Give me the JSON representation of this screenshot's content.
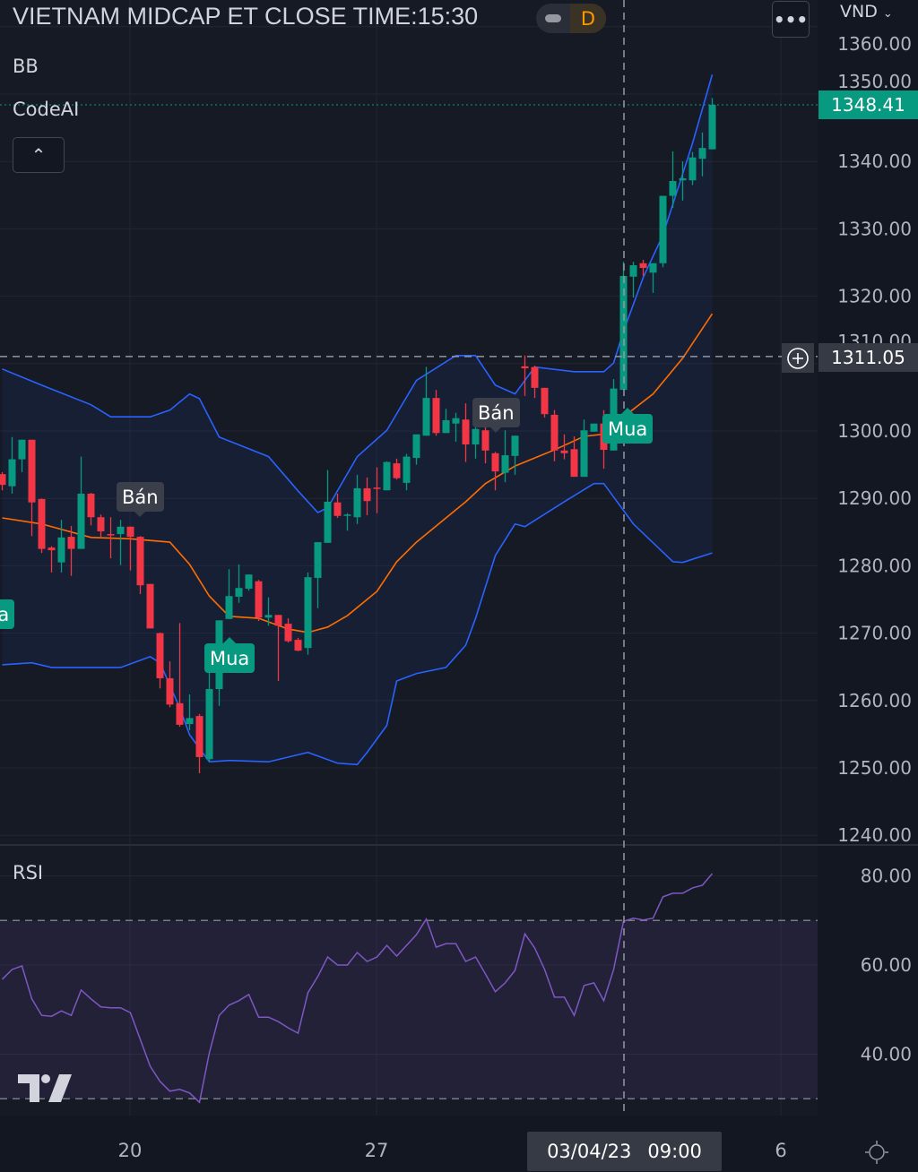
{
  "header": {
    "title": "VIETNAM MIDCAP ET CLOSE TIME:15:30",
    "interval": "D",
    "more_icon": "ellipsis-icon",
    "currency": "VND"
  },
  "legends": {
    "bb": "BB",
    "codeai": "CodeAI",
    "collapse_icon": "chevron-up-icon"
  },
  "price_axis": {
    "labels": [
      "1360.00",
      "1350.00",
      "1340.00",
      "1330.00",
      "1320.00",
      "1310.00",
      "1300.00",
      "1290.00",
      "1280.00",
      "1270.00",
      "1260.00",
      "1250.00",
      "1240.00"
    ],
    "last_price": "1348.41",
    "crosshair_price": "1311.05"
  },
  "rsi": {
    "title": "RSI",
    "labels": [
      "80.00",
      "60.00",
      "40.00"
    ]
  },
  "time_axis": {
    "labels": [
      "20",
      "27",
      "6"
    ],
    "crosshair_date": "03/04/23",
    "crosshair_time": "09:00"
  },
  "signals": [
    {
      "text": "Mua",
      "type": "buy"
    },
    {
      "text": "Bán",
      "type": "sell"
    },
    {
      "text": "Mua",
      "type": "buy"
    },
    {
      "text": "Bán",
      "type": "sell"
    },
    {
      "text": "Mua",
      "type": "buy"
    }
  ],
  "colors": {
    "up": "#089981",
    "down": "#f23645",
    "bb_band": "#2962ff",
    "bb_basis": "#ff6d00",
    "rsi": "#7e57c2",
    "background": "#131722"
  },
  "chart_data": [
    {
      "type": "candlestick",
      "ylim": [
        1240,
        1360
      ],
      "ohlc": [
        [
          1293.6,
          1293.9,
          1291.2,
          1292.0
        ],
        [
          1291.8,
          1299.1,
          1290.7,
          1295.8
        ],
        [
          1295.8,
          1298.7,
          1293.9,
          1298.7
        ],
        [
          1298.7,
          1298.7,
          1284.4,
          1289.4
        ],
        [
          1289.9,
          1290.0,
          1281.9,
          1282.5
        ],
        [
          1282.7,
          1282.9,
          1279.0,
          1282.3
        ],
        [
          1280.5,
          1286.8,
          1279.0,
          1284.2
        ],
        [
          1284.3,
          1285.9,
          1278.5,
          1282.5
        ],
        [
          1282.5,
          1296.2,
          1282.5,
          1290.7
        ],
        [
          1290.7,
          1290.8,
          1286.0,
          1287.2
        ],
        [
          1287.2,
          1287.6,
          1284.3,
          1285.1
        ],
        [
          1284.7,
          1287.2,
          1281.1,
          1284.6
        ],
        [
          1284.7,
          1286.8,
          1280.1,
          1285.8
        ],
        [
          1285.8,
          1285.8,
          1279.3,
          1284.3
        ],
        [
          1284.3,
          1284.4,
          1275.8,
          1277.1
        ],
        [
          1277.3,
          1277.3,
          1270.7,
          1270.7
        ],
        [
          1270.0,
          1270.1,
          1261.8,
          1263.3
        ],
        [
          1263.3,
          1265.8,
          1259.0,
          1259.4
        ],
        [
          1259.6,
          1271.5,
          1256.1,
          1256.4
        ],
        [
          1256.5,
          1260.9,
          1255.6,
          1257.4
        ],
        [
          1257.7,
          1258.0,
          1249.2,
          1251.6
        ],
        [
          1251.3,
          1264.2,
          1250.9,
          1261.7
        ],
        [
          1261.7,
          1271.9,
          1259.2,
          1271.9
        ],
        [
          1272.1,
          1279.5,
          1272.1,
          1275.5
        ],
        [
          1275.4,
          1280.2,
          1274.5,
          1276.7
        ],
        [
          1276.6,
          1278.7,
          1276.3,
          1278.7
        ],
        [
          1277.7,
          1277.9,
          1271.8,
          1272.3
        ],
        [
          1272.3,
          1275.3,
          1271.1,
          1272.7
        ],
        [
          1272.7,
          1272.7,
          1262.9,
          1271.1
        ],
        [
          1271.4,
          1272.2,
          1268.6,
          1268.8
        ],
        [
          1269.0,
          1269.3,
          1267.3,
          1267.4
        ],
        [
          1267.8,
          1279.0,
          1266.8,
          1278.3
        ],
        [
          1278.2,
          1283.5,
          1273.7,
          1283.5
        ],
        [
          1283.4,
          1294.2,
          1283.4,
          1289.5
        ],
        [
          1289.4,
          1290.7,
          1287.1,
          1287.4
        ],
        [
          1287.5,
          1287.8,
          1285.2,
          1287.6
        ],
        [
          1287.2,
          1293.5,
          1286.2,
          1291.5
        ],
        [
          1291.5,
          1293.1,
          1287.5,
          1289.6
        ],
        [
          1291.6,
          1294.6,
          1287.8,
          1291.5
        ],
        [
          1291.2,
          1295.5,
          1291.2,
          1295.4
        ],
        [
          1295.2,
          1295.9,
          1292.8,
          1293.0
        ],
        [
          1292.3,
          1296.6,
          1291.2,
          1296.2
        ],
        [
          1296.0,
          1299.5,
          1295.0,
          1299.5
        ],
        [
          1299.3,
          1309.5,
          1299.3,
          1304.9
        ],
        [
          1304.9,
          1306.1,
          1299.3,
          1299.7
        ],
        [
          1299.7,
          1303.3,
          1299.7,
          1301.6
        ],
        [
          1301.1,
          1302.7,
          1298.4,
          1301.9
        ],
        [
          1301.7,
          1304.1,
          1295.4,
          1298.0
        ],
        [
          1298.0,
          1301.1,
          1295.9,
          1300.3
        ],
        [
          1300.1,
          1301.1,
          1295.2,
          1297.1
        ],
        [
          1296.7,
          1296.9,
          1291.2,
          1294.0
        ],
        [
          1293.8,
          1300.1,
          1292.4,
          1296.4
        ],
        [
          1296.3,
          1299.3,
          1293.5,
          1299.3
        ],
        [
          1309.6,
          1311.2,
          1305.2,
          1309.3
        ],
        [
          1309.5,
          1309.7,
          1304.9,
          1306.4
        ],
        [
          1306.4,
          1306.4,
          1302.0,
          1302.5
        ],
        [
          1302.4,
          1303.1,
          1295.5,
          1297.1
        ],
        [
          1297.1,
          1299.5,
          1295.8,
          1296.7
        ],
        [
          1297.3,
          1299.2,
          1293.2,
          1293.2
        ],
        [
          1293.2,
          1301.7,
          1293.2,
          1300.1
        ],
        [
          1299.9,
          1301.1,
          1299.9,
          1301.1
        ],
        [
          1301.1,
          1303.1,
          1294.4,
          1297.2
        ],
        [
          1297.1,
          1307.7,
          1297.1,
          1306.3
        ],
        [
          1306.1,
          1325.1,
          1306.1,
          1323.0
        ],
        [
          1322.9,
          1325.1,
          1319.8,
          1324.6
        ],
        [
          1324.9,
          1325.4,
          1323.0,
          1324.2
        ],
        [
          1323.5,
          1324.9,
          1320.5,
          1324.9
        ],
        [
          1324.9,
          1334.9,
          1324.3,
          1334.9
        ],
        [
          1334.9,
          1341.5,
          1333.1,
          1337.1
        ],
        [
          1337.2,
          1340.0,
          1334.2,
          1337.5
        ],
        [
          1337.2,
          1341.4,
          1336.5,
          1340.6
        ],
        [
          1340.4,
          1344.3,
          1337.8,
          1342.0
        ],
        [
          1341.8,
          1349.4,
          1341.8,
          1348.41
        ]
      ],
      "bollinger": {
        "upper": [
          [
            0,
            1309.2
          ],
          [
            4,
            1306.8
          ],
          [
            9,
            1303.9
          ],
          [
            11,
            1302.1
          ],
          [
            15,
            1302.1
          ],
          [
            17,
            1303.1
          ],
          [
            19,
            1305.5
          ],
          [
            20,
            1304.8
          ],
          [
            22,
            1299.1
          ],
          [
            27,
            1296.2
          ],
          [
            30,
            1291.1
          ],
          [
            32,
            1287.9
          ],
          [
            33,
            1288.6
          ],
          [
            36,
            1296.2
          ],
          [
            39,
            1300.1
          ],
          [
            42,
            1307.5
          ],
          [
            46,
            1311.2
          ],
          [
            48,
            1311.2
          ],
          [
            50,
            1306.8
          ],
          [
            52,
            1305.5
          ],
          [
            54,
            1309.5
          ],
          [
            58,
            1308.8
          ],
          [
            61,
            1308.8
          ],
          [
            62,
            1310.1
          ],
          [
            63,
            1314.8
          ],
          [
            65,
            1322.8
          ],
          [
            67,
            1329.1
          ],
          [
            70,
            1342.7
          ],
          [
            72,
            1352.9
          ]
        ],
        "middle": [
          [
            0,
            1287.1
          ],
          [
            4,
            1286.2
          ],
          [
            9,
            1284.2
          ],
          [
            13,
            1284.0
          ],
          [
            17,
            1283.5
          ],
          [
            19,
            1280.2
          ],
          [
            21,
            1275.5
          ],
          [
            23,
            1272.5
          ],
          [
            26,
            1272.2
          ],
          [
            29,
            1270.6
          ],
          [
            31,
            1270.1
          ],
          [
            33,
            1270.9
          ],
          [
            35,
            1272.6
          ],
          [
            38,
            1276.2
          ],
          [
            40,
            1280.6
          ],
          [
            42,
            1283.5
          ],
          [
            45,
            1287.1
          ],
          [
            47,
            1289.5
          ],
          [
            49,
            1292.2
          ],
          [
            52,
            1294.8
          ],
          [
            56,
            1297.2
          ],
          [
            59,
            1299.2
          ],
          [
            62,
            1299.7
          ],
          [
            63,
            1302.1
          ],
          [
            66,
            1305.5
          ],
          [
            69,
            1310.8
          ],
          [
            72,
            1317.4
          ]
        ],
        "lower": [
          [
            0,
            1265.3
          ],
          [
            3,
            1265.6
          ],
          [
            5,
            1264.9
          ],
          [
            12,
            1264.9
          ],
          [
            15,
            1266.5
          ],
          [
            16,
            1265.6
          ],
          [
            18,
            1258.9
          ],
          [
            19,
            1254.9
          ],
          [
            21,
            1250.9
          ],
          [
            23,
            1251.1
          ],
          [
            27,
            1250.9
          ],
          [
            31,
            1252.3
          ],
          [
            34,
            1250.7
          ],
          [
            36,
            1250.5
          ],
          [
            37,
            1252.3
          ],
          [
            39,
            1256.3
          ],
          [
            40,
            1262.9
          ],
          [
            42,
            1264.0
          ],
          [
            45,
            1264.9
          ],
          [
            47,
            1268.2
          ],
          [
            48,
            1272.2
          ],
          [
            50,
            1281.5
          ],
          [
            52,
            1286.2
          ],
          [
            53,
            1285.8
          ],
          [
            57,
            1289.5
          ],
          [
            60,
            1292.2
          ],
          [
            61,
            1292.2
          ],
          [
            62,
            1290.2
          ],
          [
            64,
            1286.2
          ],
          [
            68,
            1280.6
          ],
          [
            69,
            1280.5
          ],
          [
            72,
            1281.9
          ]
        ]
      }
    },
    {
      "type": "line",
      "title": "RSI",
      "ylim": [
        25,
        85
      ],
      "levels": [
        70,
        30
      ],
      "values": [
        56.8,
        59.0,
        59.8,
        52.4,
        48.7,
        48.5,
        49.7,
        48.7,
        54.4,
        52.4,
        50.6,
        50.4,
        50.4,
        49.3,
        43.3,
        37.3,
        33.9,
        31.7,
        32.1,
        31.3,
        29.2,
        40.3,
        48.7,
        51.0,
        52.0,
        53.4,
        48.3,
        48.3,
        47.3,
        45.9,
        44.7,
        53.8,
        57.4,
        61.8,
        60.0,
        60.0,
        62.8,
        60.8,
        61.8,
        64.4,
        62.0,
        64.4,
        66.8,
        70.3,
        64.0,
        64.8,
        64.8,
        60.8,
        61.8,
        58.0,
        54.0,
        56.0,
        58.8,
        67.0,
        63.8,
        59.0,
        52.8,
        52.8,
        48.7,
        55.4,
        56.0,
        52.0,
        59.0,
        69.8,
        70.5,
        70.1,
        70.5,
        75.3,
        76.1,
        76.1,
        77.3,
        77.9,
        80.5
      ]
    }
  ]
}
